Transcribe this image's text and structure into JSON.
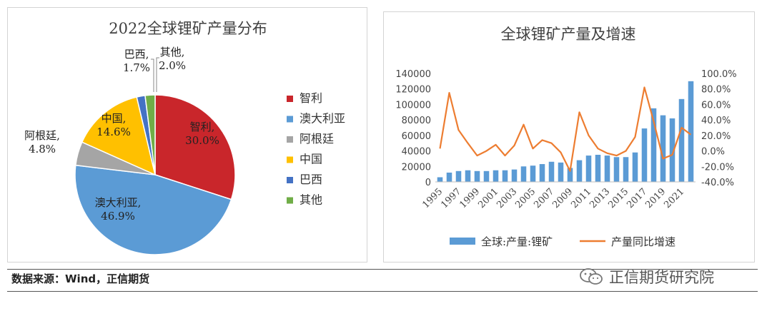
{
  "source_note": "数据来源：Wind，正信期货",
  "watermark": "正信期货研究院",
  "colors": {
    "chile": "#c9262b",
    "australia": "#5b9bd5",
    "argentina": "#a5a5a5",
    "china": "#ffc000",
    "brazil": "#4472c4",
    "other": "#70ad47",
    "bar": "#5b9bd5",
    "line": "#ed7d31"
  },
  "chart_data": [
    {
      "type": "pie",
      "title": "2022全球锂矿产量分布",
      "legend_position": "right",
      "slices": [
        {
          "name": "智利",
          "value": 30.0,
          "label_name": "智利,",
          "label_value": "30.0%"
        },
        {
          "name": "澳大利亚",
          "value": 46.9,
          "label_name": "澳大利亚,",
          "label_value": "46.9%"
        },
        {
          "name": "阿根廷",
          "value": 4.8,
          "label_name": "阿根廷,",
          "label_value": "4.8%"
        },
        {
          "name": "中国",
          "value": 14.6,
          "label_name": "中国,",
          "label_value": "14.6%"
        },
        {
          "name": "巴西",
          "value": 1.7,
          "label_name": "巴西,",
          "label_value": "1.7%"
        },
        {
          "name": "其他",
          "value": 2.0,
          "label_name": "其他,",
          "label_value": "2.0%"
        }
      ]
    },
    {
      "type": "bar+line",
      "title": "全球锂矿产量及增速",
      "legend_position": "bottom",
      "x": [
        1995,
        1996,
        1997,
        1998,
        1999,
        2000,
        2001,
        2002,
        2003,
        2004,
        2005,
        2006,
        2007,
        2008,
        2009,
        2010,
        2011,
        2012,
        2013,
        2014,
        2015,
        2016,
        2017,
        2018,
        2019,
        2020,
        2021,
        2022
      ],
      "x_tick_labels": [
        "1995",
        "1997",
        "1999",
        "2001",
        "2003",
        "2005",
        "2007",
        "2009",
        "2011",
        "2013",
        "2015",
        "2017",
        "2019",
        "2021"
      ],
      "series": [
        {
          "name": "全球:产量:锂矿",
          "type": "bar",
          "axis": "left",
          "values": [
            6000,
            12000,
            14000,
            15000,
            14000,
            14000,
            15000,
            15000,
            16000,
            20000,
            21000,
            23000,
            26000,
            25000,
            18000,
            28000,
            34000,
            35000,
            34000,
            32000,
            32000,
            38000,
            69000,
            95000,
            86000,
            82000,
            107000,
            130000
          ]
        },
        {
          "name": "产量同比增速",
          "type": "line",
          "axis": "right",
          "values": [
            3,
            75,
            27,
            10,
            -6,
            0,
            8,
            -6,
            7,
            34,
            3,
            14,
            10,
            -2,
            -26,
            50,
            20,
            3,
            -3,
            -6,
            0,
            18,
            82,
            38,
            -10,
            -5,
            30,
            21
          ]
        }
      ],
      "y_left": {
        "lim": [
          0,
          140000
        ],
        "ticks": [
          0,
          20000,
          40000,
          60000,
          80000,
          100000,
          120000,
          140000
        ]
      },
      "y_right": {
        "lim": [
          -40,
          100
        ],
        "ticks": [
          "-40.0%",
          "-20.0%",
          "0.0%",
          "20.0%",
          "40.0%",
          "60.0%",
          "80.0%",
          "100.0%"
        ]
      },
      "grid": false
    }
  ]
}
